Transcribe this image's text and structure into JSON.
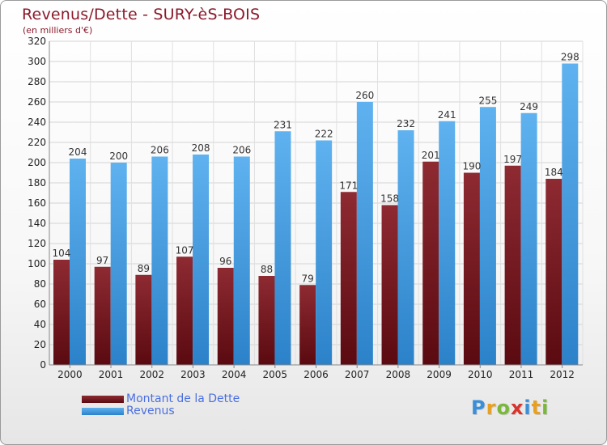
{
  "header": {
    "title": "Revenus/Dette - SURY-èS-BOIS",
    "subtitle": "(en milliers d'€)"
  },
  "legend": {
    "items": [
      {
        "label": "Montant de la Dette",
        "color": "#7a1a22"
      },
      {
        "label": "Revenus",
        "color": "#4aa3e8"
      }
    ]
  },
  "logo": {
    "text": "Proxiti"
  },
  "chart_data": {
    "type": "bar",
    "title": "Revenus/Dette - SURY-èS-BOIS",
    "subtitle": "(en milliers d'€)",
    "categories": [
      "2000",
      "2001",
      "2002",
      "2003",
      "2004",
      "2005",
      "2006",
      "2007",
      "2008",
      "2009",
      "2010",
      "2011",
      "2012"
    ],
    "series": [
      {
        "name": "Montant de la Dette",
        "color": "#7a1a22",
        "values": [
          104,
          97,
          89,
          107,
          96,
          88,
          79,
          171,
          158,
          201,
          190,
          197,
          184
        ]
      },
      {
        "name": "Revenus",
        "color": "#4aa3e8",
        "values": [
          204,
          200,
          206,
          208,
          206,
          231,
          222,
          260,
          232,
          241,
          255,
          249,
          298
        ]
      }
    ],
    "ylim": [
      0,
      320
    ],
    "yticks": [
      0,
      20,
      40,
      60,
      80,
      100,
      120,
      140,
      160,
      180,
      200,
      220,
      240,
      260,
      280,
      300,
      320
    ],
    "grid": true,
    "legend_position": "bottom-left"
  }
}
